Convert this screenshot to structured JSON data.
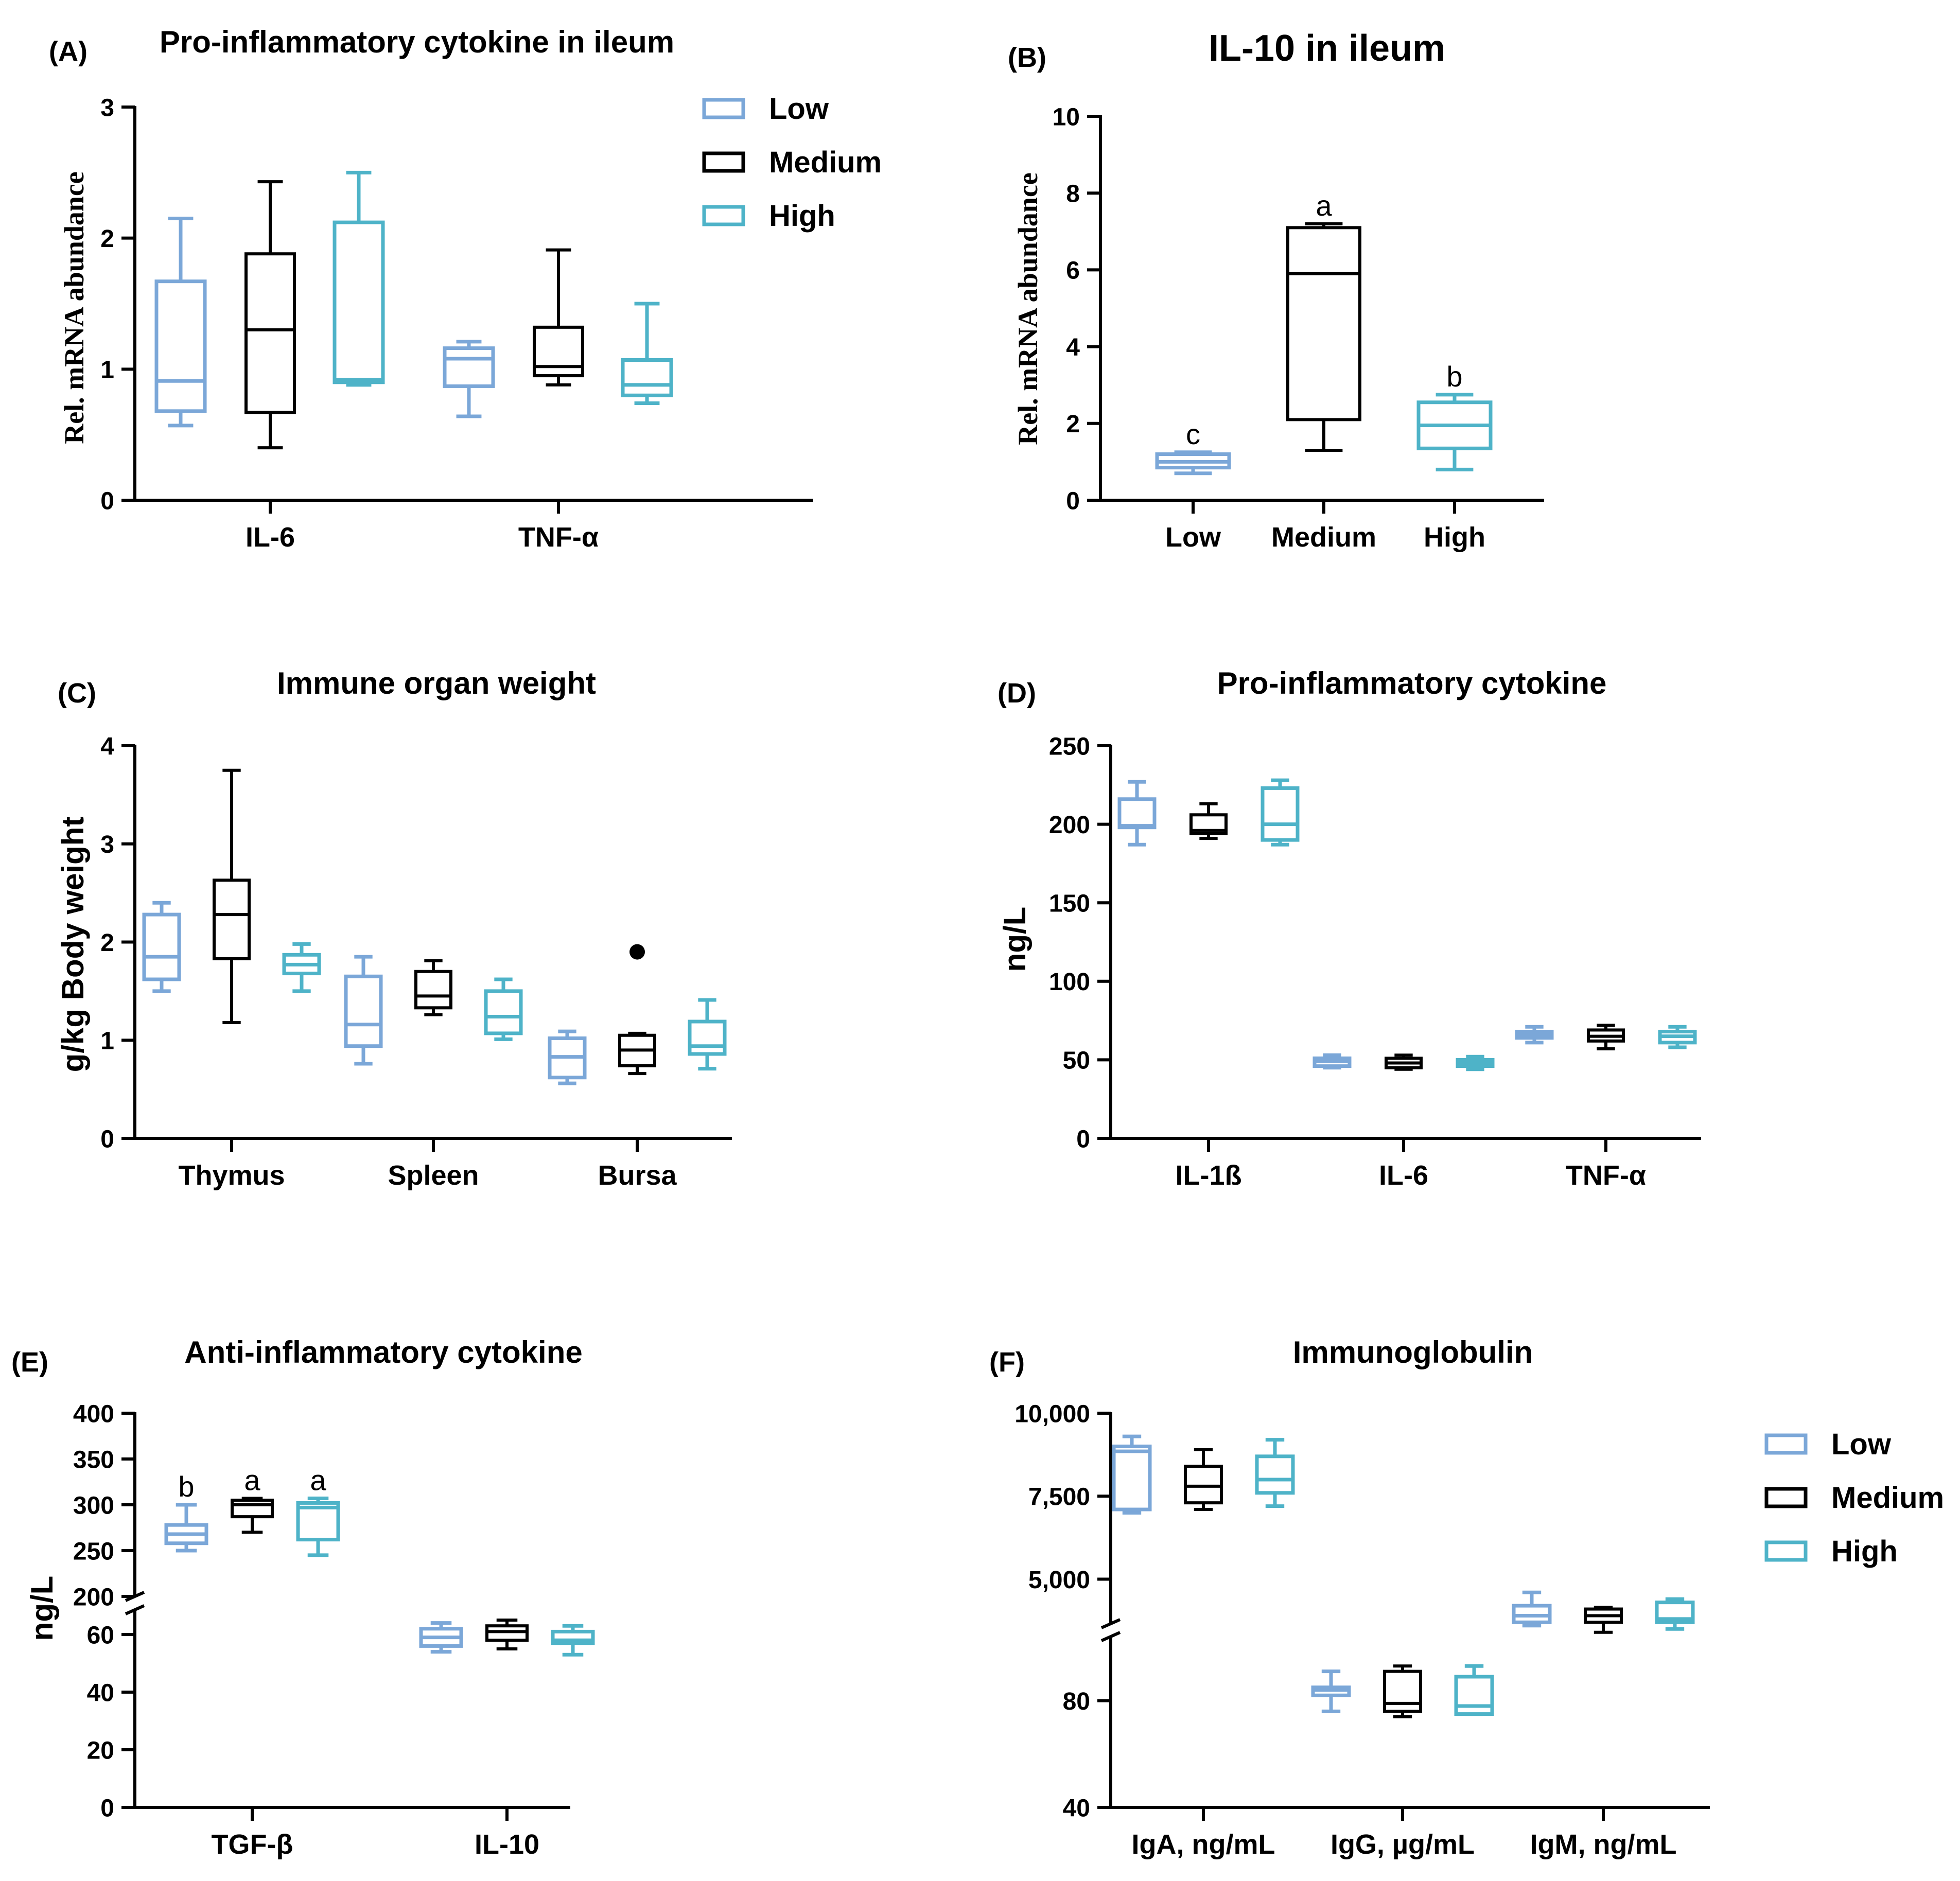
{
  "colors": {
    "low": "#7ba7d8",
    "medium": "#000000",
    "high": "#4eb3c8"
  },
  "legend_entries": [
    {
      "key": "low",
      "label": "Low"
    },
    {
      "key": "medium",
      "label": "Medium"
    },
    {
      "key": "high",
      "label": "High"
    }
  ],
  "chart_data": [
    {
      "id": "A",
      "panel_label": "(A)",
      "type": "box",
      "title": "Pro-inflammatory cytokine in ileum",
      "ylabel": "Rel. mRNA abundance",
      "ylim": [
        0,
        3
      ],
      "yticks": [
        0,
        1,
        2,
        3
      ],
      "ytick_labels": [
        "0",
        "1",
        "2",
        "3"
      ],
      "categories": [
        "IL-6",
        "TNF-α"
      ],
      "legend": "top-right",
      "series": [
        {
          "name": "Low",
          "key": "low",
          "boxes": [
            {
              "category": "IL-6",
              "min": 0.57,
              "q1": 0.68,
              "median": 0.91,
              "q3": 1.67,
              "max": 2.15
            },
            {
              "category": "TNF-α",
              "min": 0.64,
              "q1": 0.87,
              "median": 1.08,
              "q3": 1.16,
              "max": 1.21
            }
          ]
        },
        {
          "name": "Medium",
          "key": "medium",
          "boxes": [
            {
              "category": "IL-6",
              "min": 0.4,
              "q1": 0.67,
              "median": 1.3,
              "q3": 1.88,
              "max": 2.43
            },
            {
              "category": "TNF-α",
              "min": 0.88,
              "q1": 0.95,
              "median": 1.02,
              "q3": 1.32,
              "max": 1.91
            }
          ]
        },
        {
          "name": "High",
          "key": "high",
          "boxes": [
            {
              "category": "IL-6",
              "min": 0.88,
              "q1": 0.9,
              "median": 0.92,
              "q3": 2.12,
              "max": 2.5
            },
            {
              "category": "TNF-α",
              "min": 0.74,
              "q1": 0.8,
              "median": 0.88,
              "q3": 1.07,
              "max": 1.5
            }
          ]
        }
      ]
    },
    {
      "id": "B",
      "panel_label": "(B)",
      "type": "box",
      "title": "IL-10 in ileum",
      "ylabel": "Rel. mRNA abundance",
      "ylim": [
        0,
        10
      ],
      "yticks": [
        0,
        2,
        4,
        6,
        8,
        10
      ],
      "ytick_labels": [
        "0",
        "2",
        "4",
        "6",
        "8",
        "10"
      ],
      "categories": [
        "Low",
        "Medium",
        "High"
      ],
      "series": [
        {
          "name": "Low",
          "key": "low",
          "boxes": [
            {
              "category": "Low",
              "min": 0.7,
              "q1": 0.85,
              "median": 1.0,
              "q3": 1.2,
              "max": 1.25,
              "letter": "c"
            }
          ]
        },
        {
          "name": "Medium",
          "key": "medium",
          "boxes": [
            {
              "category": "Medium",
              "min": 1.3,
              "q1": 2.1,
              "median": 5.9,
              "q3": 7.1,
              "max": 7.2,
              "letter": "a"
            }
          ]
        },
        {
          "name": "High",
          "key": "high",
          "boxes": [
            {
              "category": "High",
              "min": 0.8,
              "q1": 1.35,
              "median": 1.95,
              "q3": 2.55,
              "max": 2.75,
              "letter": "b"
            }
          ]
        }
      ]
    },
    {
      "id": "C",
      "panel_label": "(C)",
      "type": "box",
      "title": "Immune organ weight",
      "ylabel": "g/kg Body weight",
      "ylim": [
        0,
        4
      ],
      "yticks": [
        0,
        1,
        2,
        3,
        4
      ],
      "ytick_labels": [
        "0",
        "1",
        "2",
        "3",
        "4"
      ],
      "categories": [
        "Thymus",
        "Spleen",
        "Bursa"
      ],
      "series": [
        {
          "name": "Low",
          "key": "low",
          "boxes": [
            {
              "category": "Thymus",
              "min": 1.5,
              "q1": 1.62,
              "median": 1.85,
              "q3": 2.28,
              "max": 2.4
            },
            {
              "category": "Spleen",
              "min": 0.76,
              "q1": 0.94,
              "median": 1.16,
              "q3": 1.65,
              "max": 1.85
            },
            {
              "category": "Bursa",
              "min": 0.56,
              "q1": 0.62,
              "median": 0.83,
              "q3": 1.02,
              "max": 1.09
            }
          ]
        },
        {
          "name": "Medium",
          "key": "medium",
          "boxes": [
            {
              "category": "Thymus",
              "min": 1.18,
              "q1": 1.83,
              "median": 2.28,
              "q3": 2.63,
              "max": 3.75
            },
            {
              "category": "Spleen",
              "min": 1.26,
              "q1": 1.33,
              "median": 1.45,
              "q3": 1.7,
              "max": 1.81
            },
            {
              "category": "Bursa",
              "min": 0.66,
              "q1": 0.74,
              "median": 0.9,
              "q3": 1.05,
              "max": 1.07,
              "outlier": 1.9
            }
          ]
        },
        {
          "name": "High",
          "key": "high",
          "boxes": [
            {
              "category": "Thymus",
              "min": 1.5,
              "q1": 1.68,
              "median": 1.77,
              "q3": 1.87,
              "max": 1.98
            },
            {
              "category": "Spleen",
              "min": 1.01,
              "q1": 1.07,
              "median": 1.24,
              "q3": 1.5,
              "max": 1.62
            },
            {
              "category": "Bursa",
              "min": 0.71,
              "q1": 0.86,
              "median": 0.94,
              "q3": 1.19,
              "max": 1.41
            }
          ]
        }
      ]
    },
    {
      "id": "D",
      "panel_label": "(D)",
      "type": "box",
      "title": "Pro-inflammatory cytokine",
      "ylabel": "ng/L",
      "ylim": [
        0,
        250
      ],
      "yticks": [
        0,
        50,
        100,
        150,
        200,
        250
      ],
      "ytick_labels": [
        "0",
        "50",
        "100",
        "150",
        "200",
        "250"
      ],
      "categories": [
        "IL-1ß",
        "IL-6",
        "TNF-α"
      ],
      "series": [
        {
          "name": "Low",
          "key": "low",
          "boxes": [
            {
              "category": "IL-1ß",
              "min": 187,
              "q1": 198,
              "median": 199,
              "q3": 216,
              "max": 227
            },
            {
              "category": "IL-6",
              "min": 45,
              "q1": 46,
              "median": 49,
              "q3": 51,
              "max": 53
            },
            {
              "category": "TNF-α",
              "min": 61,
              "q1": 64,
              "median": 66,
              "q3": 68,
              "max": 71
            }
          ]
        },
        {
          "name": "Medium",
          "key": "medium",
          "boxes": [
            {
              "category": "IL-1ß",
              "min": 191,
              "q1": 194,
              "median": 196,
              "q3": 206,
              "max": 213
            },
            {
              "category": "IL-6",
              "min": 44,
              "q1": 45,
              "median": 48,
              "q3": 51,
              "max": 53
            },
            {
              "category": "TNF-α",
              "min": 57,
              "q1": 62,
              "median": 65,
              "q3": 69,
              "max": 72
            }
          ]
        },
        {
          "name": "High",
          "key": "high",
          "boxes": [
            {
              "category": "IL-1ß",
              "min": 187,
              "q1": 190,
              "median": 200,
              "q3": 223,
              "max": 228
            },
            {
              "category": "IL-6",
              "min": 44,
              "q1": 46,
              "median": 48,
              "q3": 50,
              "max": 52
            },
            {
              "category": "TNF-α",
              "min": 58,
              "q1": 61,
              "median": 65,
              "q3": 68,
              "max": 71
            }
          ]
        }
      ]
    },
    {
      "id": "E",
      "panel_label": "(E)",
      "type": "box",
      "title": "Anti-inflammatory cytokine",
      "ylabel": "ng/L",
      "y_axis_break": {
        "lower_range": [
          0,
          65
        ],
        "upper_range": [
          200,
          400
        ]
      },
      "yticks": [
        0,
        20,
        40,
        60,
        200,
        250,
        300,
        350,
        400
      ],
      "ytick_labels": [
        "0",
        "20",
        "40",
        "60",
        "200",
        "250",
        "300",
        "350",
        "400"
      ],
      "categories": [
        "TGF-β",
        "IL-10"
      ],
      "series": [
        {
          "name": "Low",
          "key": "low",
          "boxes": [
            {
              "category": "TGF-β",
              "min": 250,
              "q1": 258,
              "median": 268,
              "q3": 278,
              "max": 300,
              "letter": "b"
            },
            {
              "category": "IL-10",
              "min": 54,
              "q1": 56,
              "median": 59,
              "q3": 62,
              "max": 64
            }
          ]
        },
        {
          "name": "Medium",
          "key": "medium",
          "boxes": [
            {
              "category": "TGF-β",
              "min": 270,
              "q1": 287,
              "median": 300,
              "q3": 305,
              "max": 307,
              "letter": "a"
            },
            {
              "category": "IL-10",
              "min": 55,
              "q1": 58,
              "median": 61,
              "q3": 63,
              "max": 65
            }
          ]
        },
        {
          "name": "High",
          "key": "high",
          "boxes": [
            {
              "category": "TGF-β",
              "min": 245,
              "q1": 262,
              "median": 297,
              "q3": 302,
              "max": 307,
              "letter": "a"
            },
            {
              "category": "IL-10",
              "min": 53,
              "q1": 57,
              "median": 58,
              "q3": 61,
              "max": 63
            }
          ]
        }
      ]
    },
    {
      "id": "F",
      "panel_label": "(F)",
      "type": "box",
      "title": "Immunoglobulin",
      "y_axis_break": {
        "lower_range": [
          40,
          100
        ],
        "upper_range": [
          4000,
          10000
        ]
      },
      "yticks": [
        40,
        80,
        5000,
        7500,
        10000
      ],
      "ytick_labels": [
        "40",
        "80",
        "5,000",
        "7,500",
        "10,000"
      ],
      "categories": [
        "IgA, ng/mL",
        "IgG, µg/mL",
        "IgM, ng/mL"
      ],
      "legend": "top-right",
      "series": [
        {
          "name": "Low",
          "key": "low",
          "boxes": [
            {
              "category": "IgA, ng/mL",
              "min": 7000,
              "q1": 7100,
              "median": 8850,
              "q3": 9000,
              "max": 9300
            },
            {
              "category": "IgG, µg/mL",
              "min": 76,
              "q1": 82,
              "median": 84,
              "q3": 85,
              "max": 91
            },
            {
              "category": "IgM, ng/mL",
              "min": 3600,
              "q1": 3700,
              "median": 3900,
              "q3": 4200,
              "max": 4600
            }
          ]
        },
        {
          "name": "Medium",
          "key": "medium",
          "boxes": [
            {
              "category": "IgA, ng/mL",
              "min": 7100,
              "q1": 7300,
              "median": 7800,
              "q3": 8400,
              "max": 8900
            },
            {
              "category": "IgG, µg/mL",
              "min": 74,
              "q1": 76,
              "median": 79,
              "q3": 91,
              "max": 93
            },
            {
              "category": "IgM, ng/mL",
              "min": 3400,
              "q1": 3700,
              "median": 3900,
              "q3": 4100,
              "max": 4150
            }
          ]
        },
        {
          "name": "High",
          "key": "high",
          "boxes": [
            {
              "category": "IgA, ng/mL",
              "min": 7200,
              "q1": 7600,
              "median": 8000,
              "q3": 8700,
              "max": 9200
            },
            {
              "category": "IgG, µg/mL",
              "min": 75,
              "q1": 75,
              "median": 78,
              "q3": 89,
              "max": 93
            },
            {
              "category": "IgM, ng/mL",
              "min": 3500,
              "q1": 3700,
              "median": 3800,
              "q3": 4300,
              "max": 4400
            }
          ]
        }
      ]
    }
  ]
}
